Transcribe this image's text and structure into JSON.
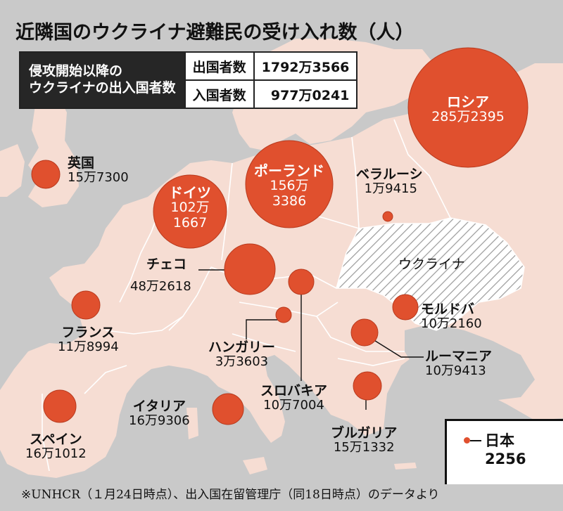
{
  "title": "近隣国のウクライナ避難民の受け入れ数（人）",
  "totals": {
    "header_line1": "侵攻開始以降の",
    "header_line2": "ウクライナの出入国者数",
    "rows": [
      {
        "label": "出国者数",
        "value": "1792万3566"
      },
      {
        "label": "入国者数",
        "value": "977万0241"
      }
    ]
  },
  "ukraine_label": "ウクライナ",
  "countries": [
    {
      "id": "russia",
      "name": "ロシア",
      "value": "285万2395",
      "count": 2852395
    },
    {
      "id": "poland",
      "name": "ポーランド",
      "value_line1": "156万",
      "value_line2": "3386",
      "count": 1563386
    },
    {
      "id": "germany",
      "name": "ドイツ",
      "value_line1": "102万",
      "value_line2": "1667",
      "count": 1021667
    },
    {
      "id": "czech",
      "name": "チェコ",
      "value": "48万2618",
      "count": 482618
    },
    {
      "id": "uk",
      "name": "英国",
      "value": "15万7300",
      "count": 157300
    },
    {
      "id": "belarus",
      "name": "ベラルーシ",
      "value": "1万9415",
      "count": 19415
    },
    {
      "id": "moldova",
      "name": "モルドバ",
      "value": "10万2160",
      "count": 102160
    },
    {
      "id": "romania",
      "name": "ルーマニア",
      "value": "10万9413",
      "count": 109413
    },
    {
      "id": "france",
      "name": "フランス",
      "value": "11万8994",
      "count": 118994
    },
    {
      "id": "hungary",
      "name": "ハンガリー",
      "value": "3万3603",
      "count": 33603
    },
    {
      "id": "slovakia",
      "name": "スロバキア",
      "value": "10万7004",
      "count": 107004
    },
    {
      "id": "bulgaria",
      "name": "ブルガリア",
      "value": "15万1332",
      "count": 151332
    },
    {
      "id": "italy",
      "name": "イタリア",
      "value": "16万9306",
      "count": 169306
    },
    {
      "id": "spain",
      "name": "スペイン",
      "value": "16万1012",
      "count": 161012
    }
  ],
  "legend": {
    "name": "日本",
    "value": "2256",
    "count": 2256
  },
  "source": "※UNHCR（１月24日時点）、出入国在留管理庁（同18日時点）のデータより",
  "colors": {
    "sea": "#c9c9c9",
    "land": "#f6ddd3",
    "ukraine": "#ffffff",
    "border": "#ffffff",
    "circle": "#e0502e",
    "circle_stroke": "#b83a1e"
  }
}
